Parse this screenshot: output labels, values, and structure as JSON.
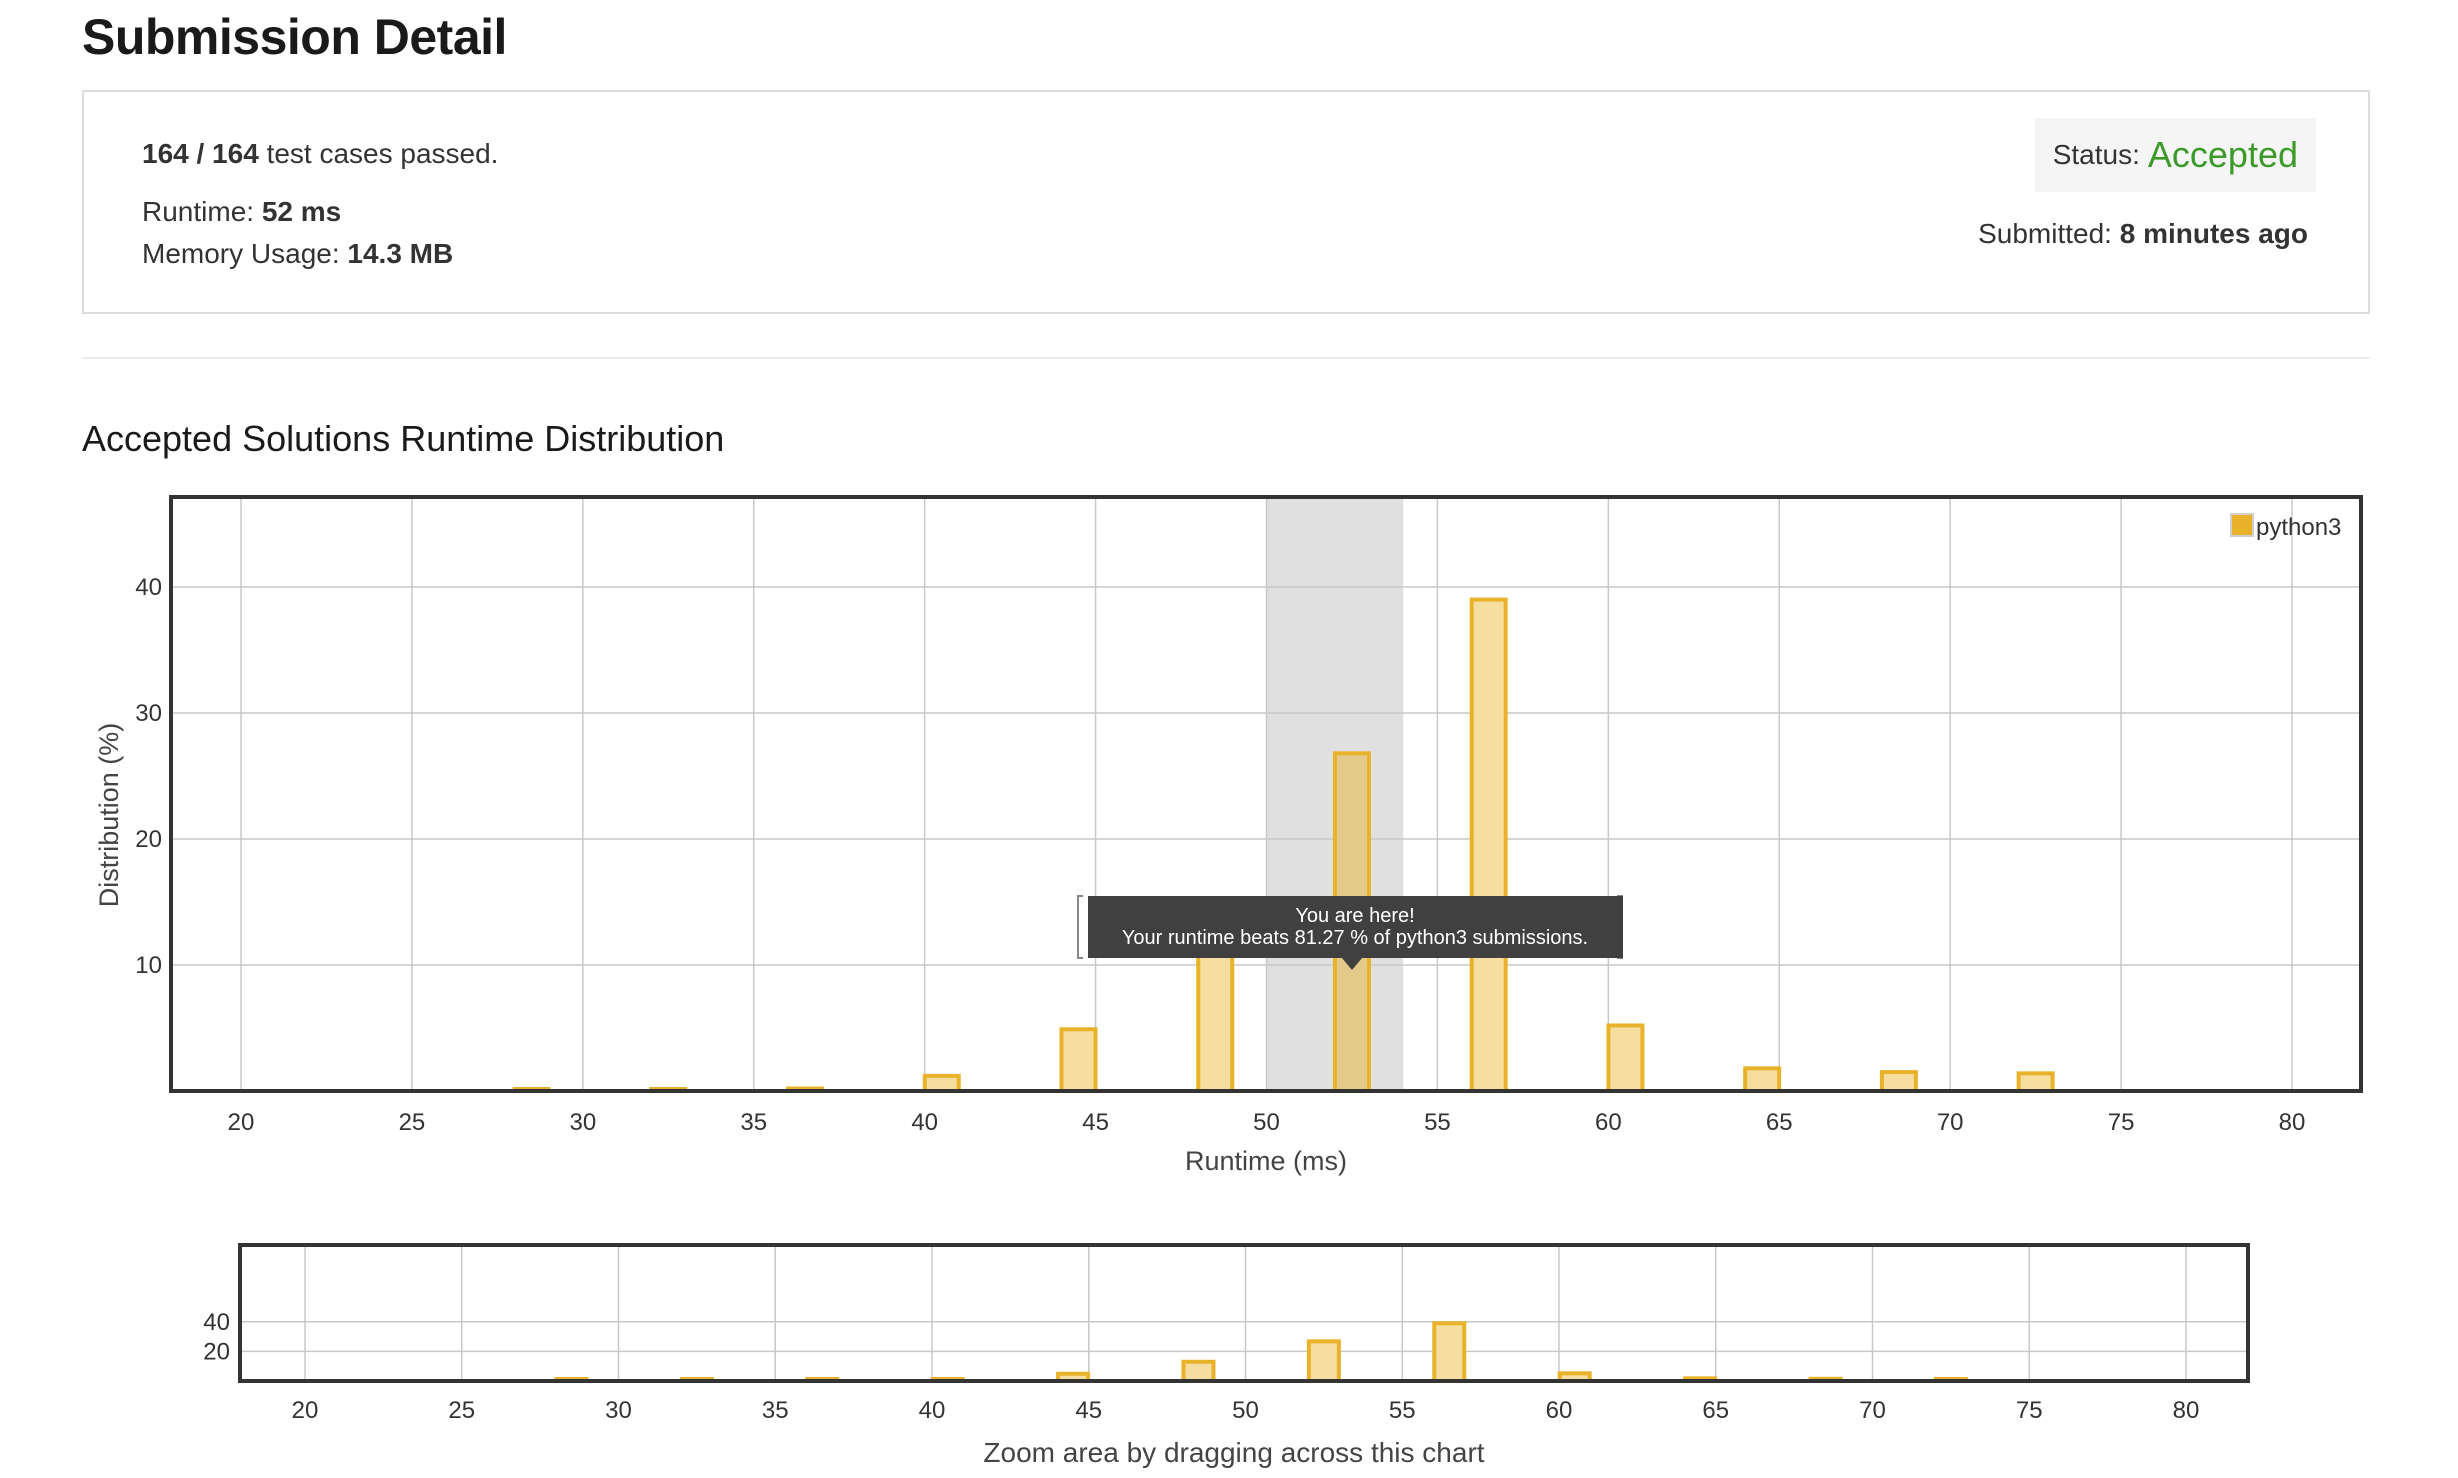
{
  "header": {
    "title": "Submission Detail"
  },
  "detail": {
    "cases_count": "164 / 164",
    "cases_text": "test cases passed.",
    "runtime_label": "Runtime:",
    "runtime_value": "52 ms",
    "memory_label": "Memory Usage:",
    "memory_value": "14.3 MB",
    "status_label": "Status:",
    "status_value": "Accepted",
    "submitted_label": "Submitted:",
    "submitted_value": "8 minutes ago"
  },
  "section": {
    "title": "Accepted Solutions Runtime Distribution"
  },
  "tooltip": {
    "line1": "You are here!",
    "line2": "Your runtime beats 81.27 % of python3 submissions."
  },
  "navigator": {
    "caption": "Zoom area by dragging across this chart"
  },
  "colors": {
    "bar_fill": "#f5dea0",
    "bar_stroke": "#e8b22a",
    "highlight_fill": "#e3c98a",
    "band": "#e0e0e0",
    "tooltip_bg": "#404040",
    "accepted": "#3c9a2a"
  },
  "chart_data": [
    {
      "type": "bar",
      "xlabel": "Runtime (ms)",
      "ylabel": "Distribution (%)",
      "xlim": [
        20,
        80
      ],
      "ylim": [
        0,
        47
      ],
      "xticks": [
        20,
        25,
        30,
        35,
        40,
        45,
        50,
        55,
        60,
        65,
        70,
        75,
        80
      ],
      "yticks": [
        10,
        20,
        30,
        40
      ],
      "grid": true,
      "legend_position": "top-right",
      "highlight_range": [
        50,
        54
      ],
      "series": [
        {
          "name": "python3",
          "x": [
            28.5,
            32.5,
            36.5,
            40.5,
            44.5,
            48.5,
            52.5,
            56.5,
            60.5,
            64.5,
            68.5,
            72.5
          ],
          "values": [
            0.1,
            0.1,
            0.2,
            1.2,
            4.9,
            13.0,
            26.8,
            39.0,
            5.2,
            1.8,
            1.5,
            1.4
          ]
        }
      ]
    },
    {
      "type": "bar",
      "xlabel": "",
      "xlim": [
        18,
        82
      ],
      "ylim": [
        0,
        47
      ],
      "xticks": [
        20,
        25,
        30,
        35,
        40,
        45,
        50,
        55,
        60,
        65,
        70,
        75,
        80
      ],
      "yticks": [
        20,
        40
      ],
      "grid": true,
      "series": [
        {
          "x": [
            28.5,
            32.5,
            36.5,
            40.5,
            44.5,
            48.5,
            52.5,
            56.5,
            60.5,
            64.5,
            68.5,
            72.5
          ],
          "values": [
            0.1,
            0.1,
            0.2,
            1.2,
            4.9,
            13.0,
            26.8,
            39.0,
            5.2,
            1.8,
            1.5,
            1.4
          ]
        }
      ]
    }
  ]
}
